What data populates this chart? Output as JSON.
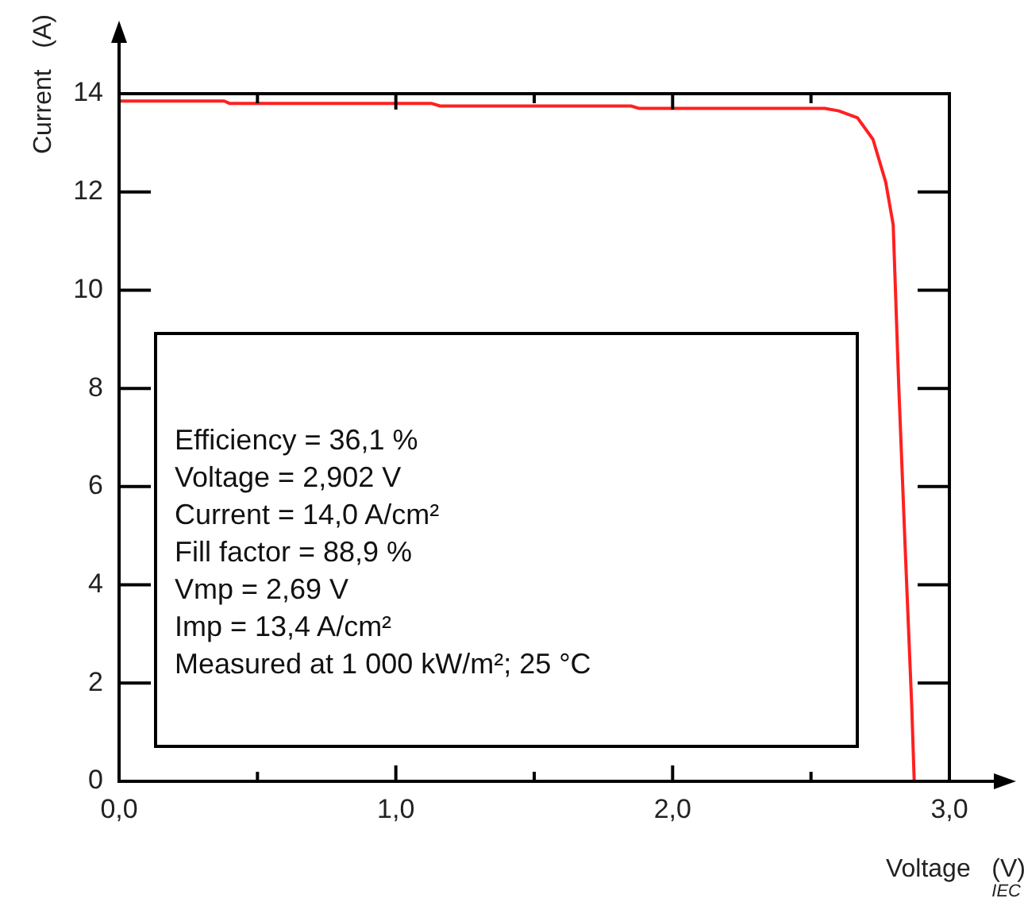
{
  "chart_data": {
    "type": "line",
    "xlabel": "Voltage   (V)",
    "ylabel": "Current   (A)",
    "series": [
      {
        "color": "#ff2020",
        "x": [
          0,
          0.38,
          0.4,
          1.13,
          1.16,
          1.85,
          1.88,
          2.55,
          2.6,
          2.668,
          2.724,
          2.77,
          2.797,
          2.817,
          2.84,
          2.864,
          2.873
        ],
        "values": [
          13.85,
          13.85,
          13.8,
          13.8,
          13.75,
          13.75,
          13.7,
          13.7,
          13.65,
          13.51,
          13.07,
          12.2,
          11.33,
          8.06,
          4.79,
          1.53,
          0
        ]
      }
    ],
    "xlim": [
      0,
      3
    ],
    "ylim": [
      0,
      14
    ],
    "xticks": [
      {
        "value": 0,
        "label": "0,0"
      },
      {
        "value": 0.5,
        "label": null
      },
      {
        "value": 1,
        "label": "1,0"
      },
      {
        "value": 1.5,
        "label": null
      },
      {
        "value": 2,
        "label": "2,0"
      },
      {
        "value": 2.5,
        "label": null
      },
      {
        "value": 3,
        "label": "3,0"
      }
    ],
    "yticks": [
      0,
      2,
      4,
      6,
      8,
      10,
      12,
      14
    ],
    "grid": false,
    "legend": false,
    "marker": "none",
    "line_style": "solid",
    "annotations": [
      "Efficiency = 36,1 %\nVoltage = 2,902 V\nCurrent = 14,0 A/cm²\nFill factor = 88,9 %\nVmp = 2,69 V\nImp = 13,4 A/cm²\nMeasured at 1 000 kW/m²; 25 °C",
      "IEC"
    ]
  }
}
